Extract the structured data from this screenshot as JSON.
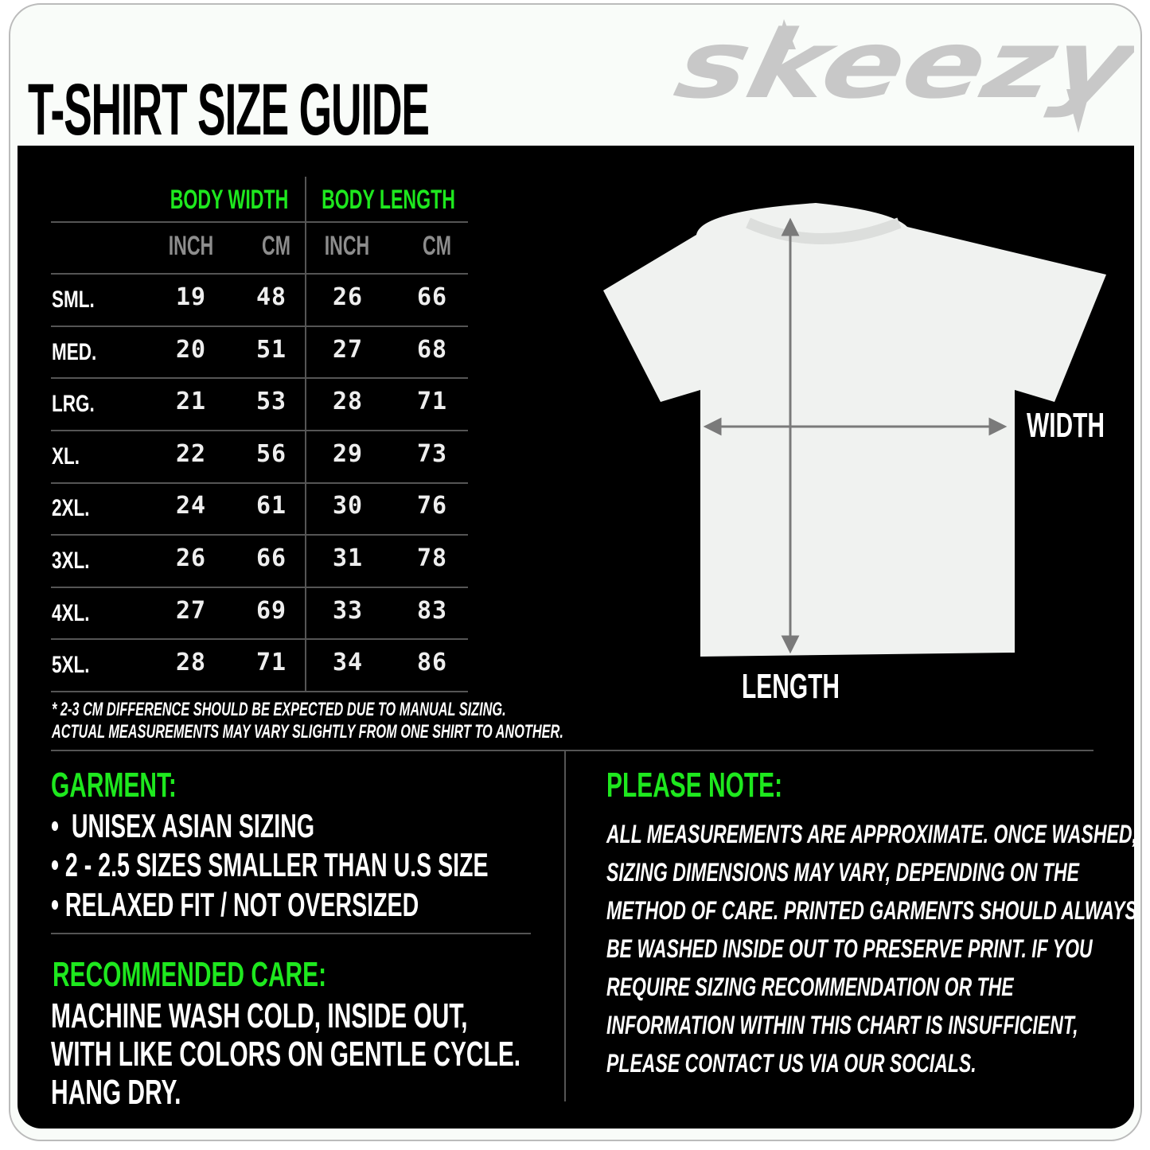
{
  "title": "T-SHIRT SIZE GUIDE",
  "brand": "skeezy",
  "table": {
    "groups": [
      "BODY WIDTH",
      "BODY LENGTH"
    ],
    "units": [
      "INCH",
      "CM",
      "INCH",
      "CM"
    ],
    "rows": [
      {
        "size": "SML.",
        "values": [
          "19",
          "48",
          "26",
          "66"
        ]
      },
      {
        "size": "MED.",
        "values": [
          "20",
          "51",
          "27",
          "68"
        ]
      },
      {
        "size": "LRG.",
        "values": [
          "21",
          "53",
          "28",
          "71"
        ]
      },
      {
        "size": "XL.",
        "values": [
          "22",
          "56",
          "29",
          "73"
        ]
      },
      {
        "size": "2XL.",
        "values": [
          "24",
          "61",
          "30",
          "76"
        ]
      },
      {
        "size": "3XL.",
        "values": [
          "26",
          "66",
          "31",
          "78"
        ]
      },
      {
        "size": "4XL.",
        "values": [
          "27",
          "69",
          "33",
          "83"
        ]
      },
      {
        "size": "5XL.",
        "values": [
          "28",
          "71",
          "34",
          "86"
        ]
      }
    ]
  },
  "footnote": [
    "* 2-3 CM DIFFERENCE SHOULD BE EXPECTED DUE TO MANUAL SIZING.",
    "ACTUAL MEASUREMENTS MAY VARY SLIGHTLY FROM ONE SHIRT TO ANOTHER."
  ],
  "diagram": {
    "width_label": "WIDTH",
    "length_label": "LENGTH"
  },
  "garment": {
    "heading": "GARMENT:",
    "items": [
      "UNISEX ASIAN SIZING",
      "2 - 2.5 SIZES SMALLER THAN U.S SIZE",
      "RELAXED FIT / NOT OVERSIZED"
    ]
  },
  "care": {
    "heading": "RECOMMENDED CARE:",
    "lines": [
      "MACHINE WASH COLD, INSIDE OUT,",
      "WITH LIKE COLORS ON GENTLE CYCLE.",
      "HANG DRY."
    ]
  },
  "note": {
    "heading": "PLEASE NOTE:",
    "lines": [
      "ALL MEASUREMENTS ARE APPROXIMATE. ONCE  WASHED,",
      "SIZING DIMENSIONS MAY VARY, DEPENDING ON THE",
      "METHOD OF CARE. PRINTED GARMENTS SHOULD ALWAYS",
      "BE WASHED INSIDE OUT TO PRESERVE PRINT.  IF YOU",
      "REQUIRE SIZING  RECOMMENDATION OR THE",
      "INFORMATION WITHIN THIS CHART IS INSUFFICIENT,",
      "PLEASE CONTACT US VIA OUR SOCIALS."
    ]
  },
  "colors": {
    "accent": "#1ee81e",
    "panel": "#000000",
    "logo": "#c8c8c8"
  }
}
